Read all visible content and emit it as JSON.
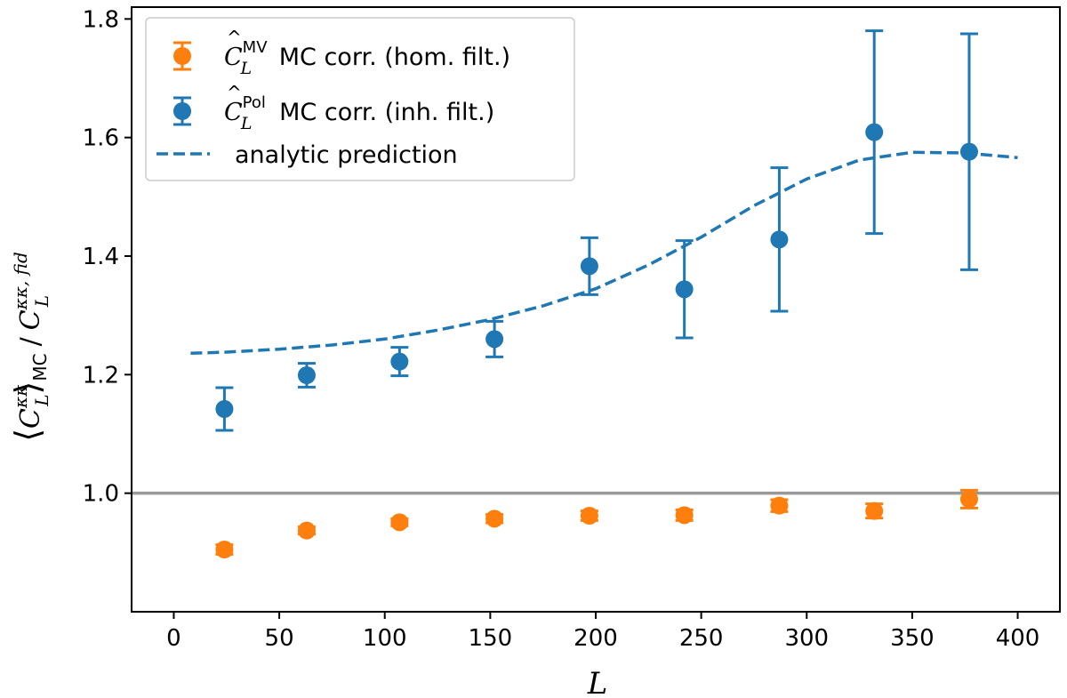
{
  "chart_data": {
    "type": "scatter",
    "title": "",
    "xlabel": "L",
    "ylabel": {
      "numerator": "C",
      "numerator_sup": "κκ",
      "numerator_sub": "L",
      "bracket_sub": "MC",
      "separator": "/",
      "denominator": "C",
      "denominator_sup": "κκ, fid",
      "denominator_sub": "L"
    },
    "xlim": [
      -20,
      420
    ],
    "ylim": [
      0.8,
      1.82
    ],
    "xticks": [
      "0",
      "50",
      "100",
      "150",
      "200",
      "250",
      "300",
      "350",
      "400"
    ],
    "yticks": [
      "1.0",
      "1.2",
      "1.4",
      "1.6",
      "1.8"
    ],
    "reference_line": {
      "y": 1.0,
      "color": "#999999"
    },
    "legend_position": "top-left",
    "series": [
      {
        "name": "MV",
        "legend": {
          "symbol": "C",
          "sup": "MV",
          "sub": "L",
          "text": " MC corr. (hom. filt.)"
        },
        "color": "#ff7f0e",
        "x": [
          24,
          63,
          107,
          152,
          197,
          242,
          287,
          332,
          377
        ],
        "y": [
          0.905,
          0.937,
          0.951,
          0.957,
          0.962,
          0.963,
          0.979,
          0.97,
          0.99
        ],
        "yerr": [
          0.008,
          0.006,
          0.006,
          0.007,
          0.008,
          0.009,
          0.01,
          0.012,
          0.015
        ]
      },
      {
        "name": "Pol",
        "legend": {
          "symbol": "C",
          "sup": "Pol",
          "sub": "L",
          "text": " MC corr. (inh. filt.)"
        },
        "color": "#1f77b4",
        "x": [
          24,
          63,
          107,
          152,
          197,
          242,
          287,
          332,
          377
        ],
        "y": [
          1.142,
          1.199,
          1.222,
          1.26,
          1.383,
          1.344,
          1.428,
          1.609,
          1.576
        ],
        "yerr": [
          0.036,
          0.02,
          0.024,
          0.03,
          0.048,
          0.082,
          0.121,
          0.171,
          0.199
        ]
      },
      {
        "name": "analytic",
        "legend": {
          "text": "analytic prediction"
        },
        "type": "line",
        "style": "dashed",
        "color": "#1f77b4",
        "x": [
          8,
          25,
          50,
          75,
          100,
          125,
          150,
          175,
          200,
          225,
          250,
          275,
          300,
          325,
          350,
          375,
          400
        ],
        "y": [
          1.236,
          1.238,
          1.243,
          1.25,
          1.26,
          1.275,
          1.293,
          1.316,
          1.345,
          1.385,
          1.432,
          1.485,
          1.53,
          1.562,
          1.575,
          1.574,
          1.566
        ]
      }
    ]
  }
}
